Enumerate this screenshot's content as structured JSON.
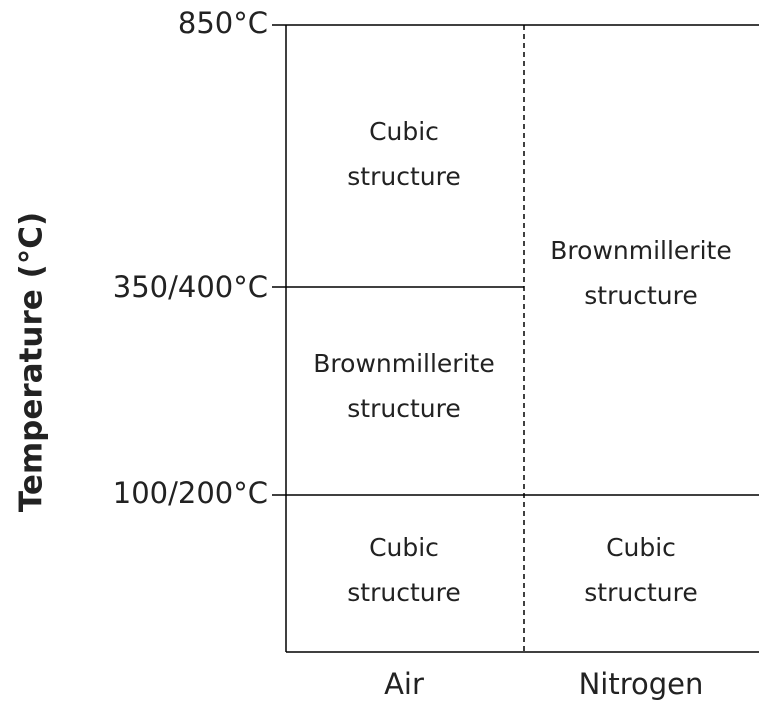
{
  "y_axis": {
    "title": "Temperature (°C)",
    "ticks": [
      "850°C",
      "350/400°C",
      "100/200°C"
    ]
  },
  "columns": [
    "Air",
    "Nitrogen"
  ],
  "cells": [
    {
      "lines": [
        "Cubic",
        "structure"
      ]
    },
    {
      "lines": [
        "Brownmillerite",
        "structure"
      ]
    },
    {
      "lines": [
        "Cubic",
        "structure"
      ]
    },
    {
      "lines": [
        "Brownmillerite",
        "structure"
      ]
    },
    {
      "lines": [
        "Cubic",
        "structure"
      ]
    }
  ]
}
